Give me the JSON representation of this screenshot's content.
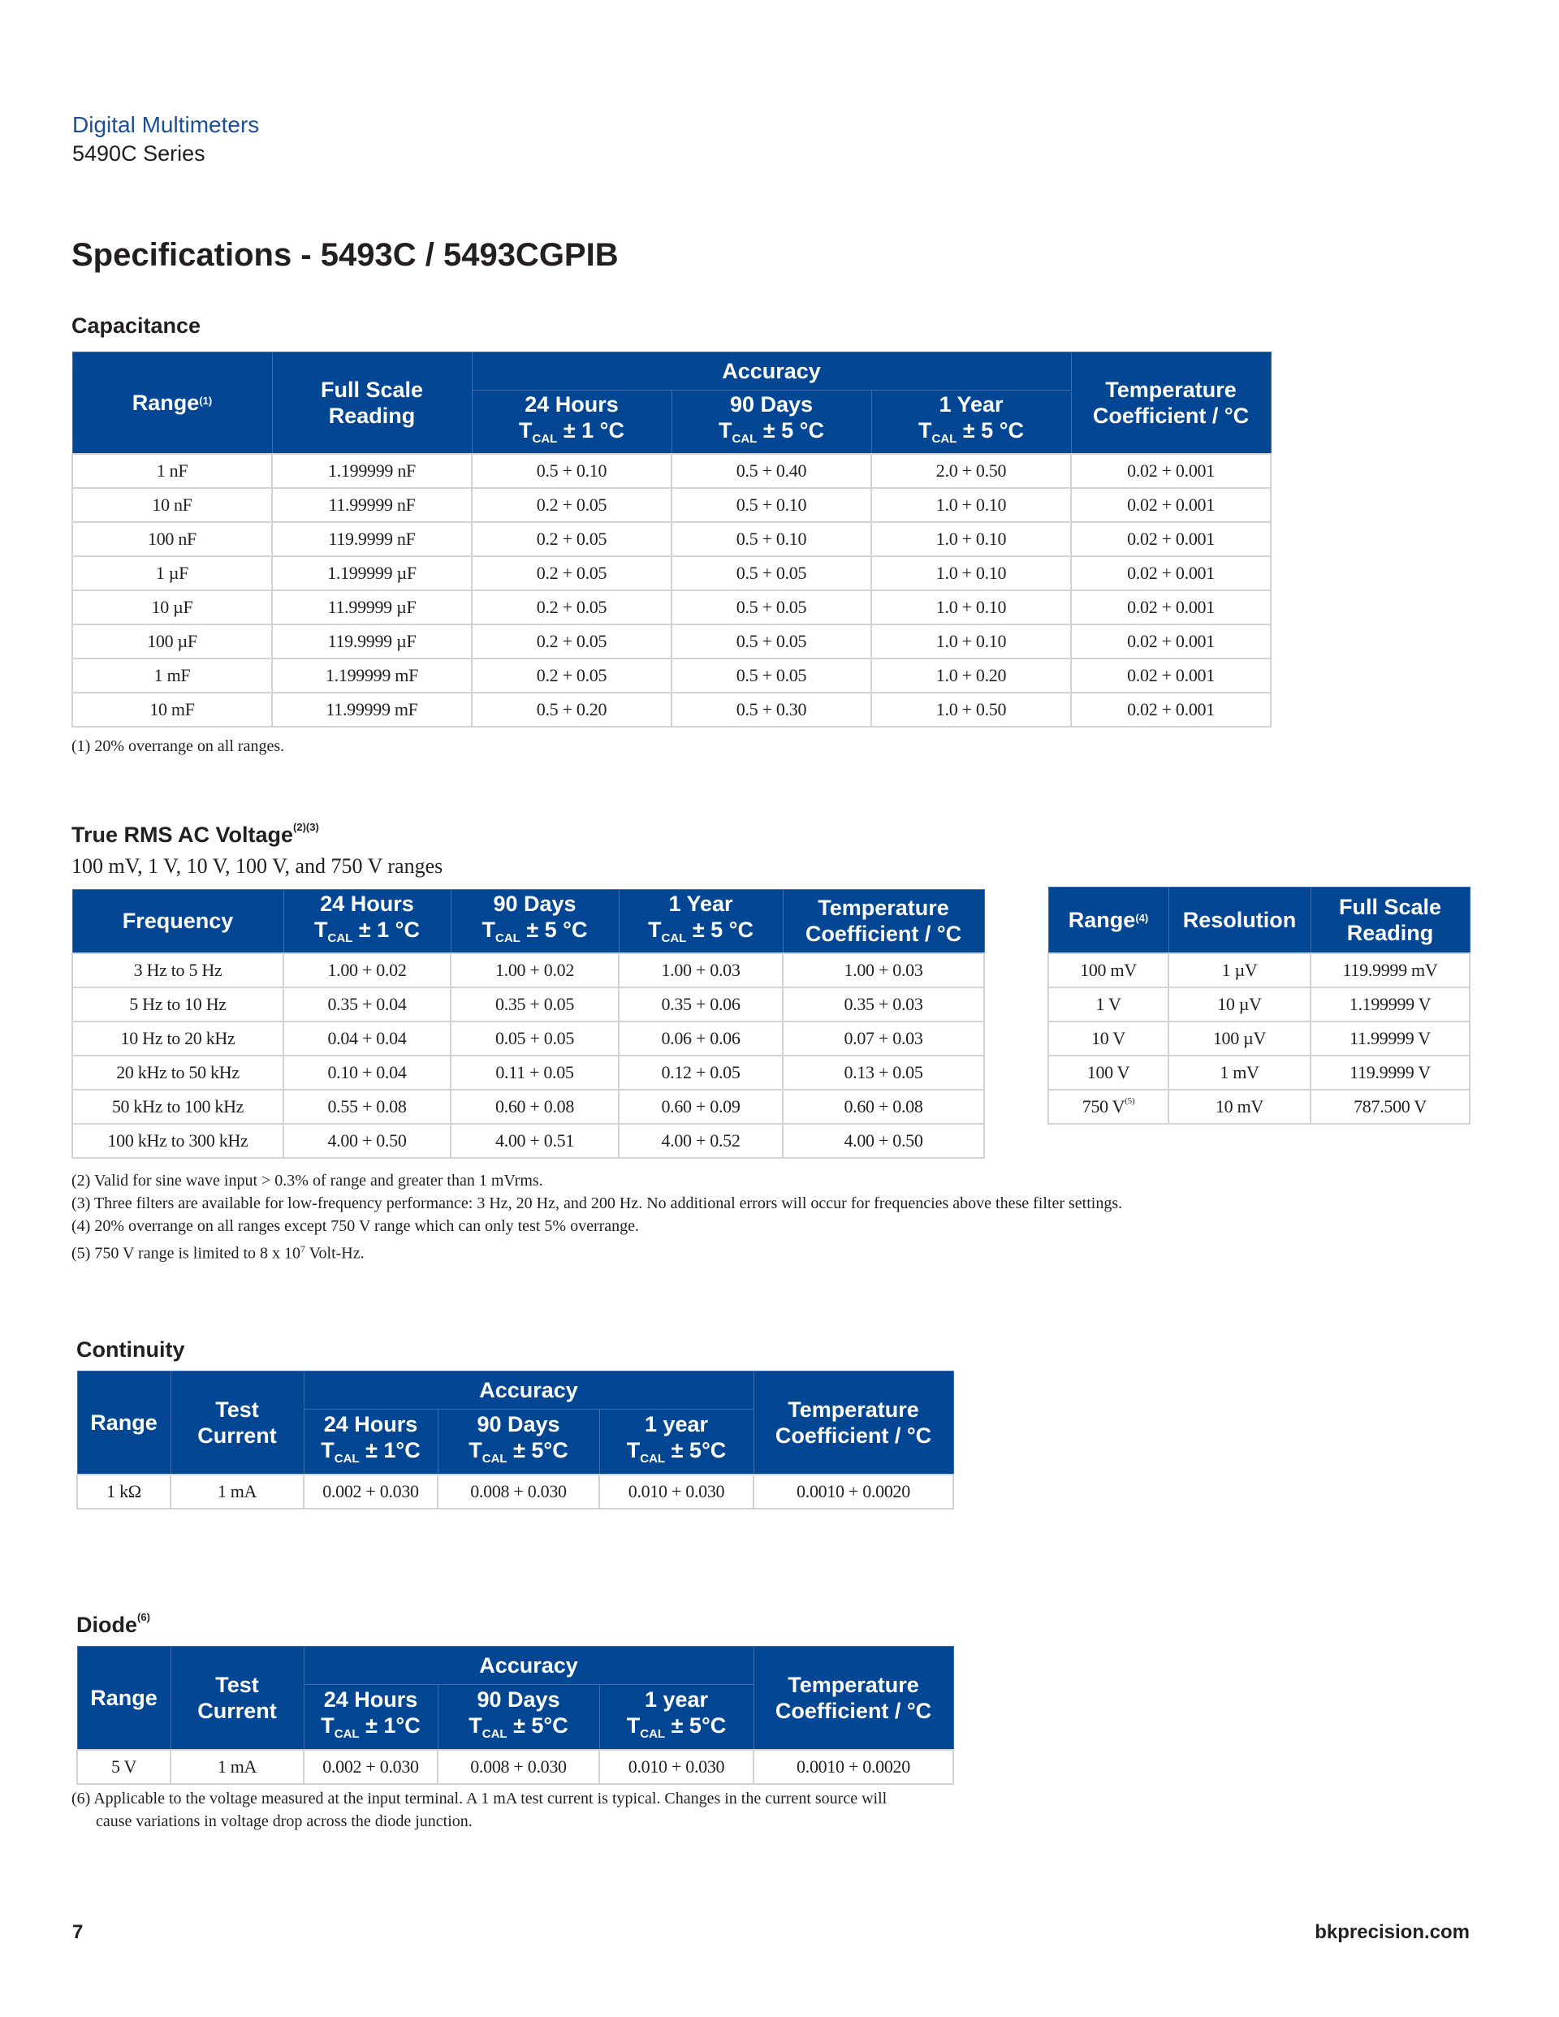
{
  "header": {
    "brand": "Digital Multimeters",
    "series": "5490C Series"
  },
  "title": "Specifications - 5493C / 5493CGPIB",
  "colors": {
    "header_blue": "#034694",
    "brand_blue": "#1a4f9c",
    "border_gray": "#d2d3d5"
  },
  "tcal": {
    "symbol": "T",
    "sub": "CAL"
  },
  "capacitance": {
    "heading": "Capacitance",
    "headers": {
      "range": "Range",
      "range_sup": "(1)",
      "full_scale": "Full Scale Reading",
      "accuracy": "Accuracy",
      "h24": "24 Hours",
      "h24_t": "± 1 °C",
      "d90": "90 Days",
      "d90_t": "± 5 °C",
      "y1": "1 Year",
      "y1_t": "± 5 °C",
      "temp": "Temperature Coefficient / °C"
    },
    "rows": [
      [
        "1 nF",
        "1.199999 nF",
        "0.5 + 0.10",
        "0.5 + 0.40",
        "2.0 + 0.50",
        "0.02 + 0.001"
      ],
      [
        "10 nF",
        "11.99999 nF",
        "0.2 + 0.05",
        "0.5 + 0.10",
        "1.0 + 0.10",
        "0.02 + 0.001"
      ],
      [
        "100 nF",
        "119.9999 nF",
        "0.2 + 0.05",
        "0.5 + 0.10",
        "1.0 + 0.10",
        "0.02 + 0.001"
      ],
      [
        "1 µF",
        "1.199999 µF",
        "0.2 + 0.05",
        "0.5 + 0.05",
        "1.0 + 0.10",
        "0.02 + 0.001"
      ],
      [
        "10 µF",
        "11.99999 µF",
        "0.2 + 0.05",
        "0.5 + 0.05",
        "1.0 + 0.10",
        "0.02 + 0.001"
      ],
      [
        "100 µF",
        "119.9999 µF",
        "0.2 + 0.05",
        "0.5 + 0.05",
        "1.0 + 0.10",
        "0.02 + 0.001"
      ],
      [
        "1 mF",
        "1.199999 mF",
        "0.2 + 0.05",
        "0.5 + 0.05",
        "1.0 + 0.20",
        "0.02 + 0.001"
      ],
      [
        "10 mF",
        "11.99999 mF",
        "0.5 + 0.20",
        "0.5 + 0.30",
        "1.0 + 0.50",
        "0.02 + 0.001"
      ]
    ],
    "footnote": "(1) 20% overrange on all ranges."
  },
  "ac_voltage": {
    "heading": "True RMS AC Voltage",
    "heading_sup": "(2)(3)",
    "subtitle": "100 mV, 1 V, 10 V, 100 V, and 750 V ranges",
    "headers": {
      "frequency": "Frequency",
      "h24": "24 Hours",
      "h24_t": "± 1 °C",
      "d90": "90 Days",
      "d90_t": "± 5 °C",
      "y1": "1 Year",
      "y1_t": "± 5 °C",
      "temp": "Temperature Coefficient / °C"
    },
    "rows": [
      [
        "3 Hz to 5 Hz",
        "1.00 + 0.02",
        "1.00 + 0.02",
        "1.00 + 0.03",
        "1.00 + 0.03"
      ],
      [
        "5 Hz to 10 Hz",
        "0.35 + 0.04",
        "0.35 + 0.05",
        "0.35 + 0.06",
        "0.35 + 0.03"
      ],
      [
        "10 Hz to 20 kHz",
        "0.04 + 0.04",
        "0.05 + 0.05",
        "0.06 + 0.06",
        "0.07 + 0.03"
      ],
      [
        "20 kHz to 50 kHz",
        "0.10 + 0.04",
        "0.11 + 0.05",
        "0.12 + 0.05",
        "0.13 + 0.05"
      ],
      [
        "50 kHz to 100 kHz",
        "0.55 + 0.08",
        "0.60 + 0.08",
        "0.60 + 0.09",
        "0.60 + 0.08"
      ],
      [
        "100 kHz to 300 kHz",
        "4.00 + 0.50",
        "4.00 + 0.51",
        "4.00 + 0.52",
        "4.00 + 0.50"
      ]
    ],
    "range_table": {
      "headers": {
        "range": "Range",
        "range_sup": "(4)",
        "resolution": "Resolution",
        "full_scale": "Full Scale Reading"
      },
      "rows": [
        [
          "100 mV",
          "1 µV",
          "119.9999 mV"
        ],
        [
          "1 V",
          "10 µV",
          "1.199999 V"
        ],
        [
          "10 V",
          "100 µV",
          "11.99999 V"
        ],
        [
          "100 V",
          "1 mV",
          "119.9999 V"
        ],
        [
          "750 V",
          "10 mV",
          "787.500 V"
        ]
      ],
      "last_row_sup": "(5)"
    },
    "footnotes": [
      "(2) Valid for sine wave input > 0.3% of range and greater than 1 mVrms.",
      "(3) Three filters are available for low-frequency performance: 3 Hz, 20 Hz, and 200 Hz. No additional errors will occur for frequencies above these filter settings.",
      "(4) 20% overrange on all ranges except 750 V range which can only test 5% overrange.",
      "(5) 750 V range is limited to 8 x 10",
      "7",
      " Volt-Hz."
    ]
  },
  "continuity": {
    "heading": "Continuity",
    "headers": {
      "range": "Range",
      "test_current": "Test Current",
      "accuracy": "Accuracy",
      "h24": "24 Hours",
      "h24_t": "± 1°C",
      "d90": "90 Days",
      "d90_t": "± 5°C",
      "y1": "1 year",
      "y1_t": "± 5°C",
      "temp": "Temperature Coefficient / °C"
    },
    "rows": [
      [
        "1 kΩ",
        "1 mA",
        "0.002 + 0.030",
        "0.008 + 0.030",
        "0.010 + 0.030",
        "0.0010 + 0.0020"
      ]
    ]
  },
  "diode": {
    "heading": "Diode",
    "heading_sup": "(6)",
    "headers": {
      "range": "Range",
      "test_current": "Test Current",
      "accuracy": "Accuracy",
      "h24": "24 Hours",
      "h24_t": "± 1°C",
      "d90": "90 Days",
      "d90_t": "± 5°C",
      "y1": "1 year",
      "y1_t": "± 5°C",
      "temp": "Temperature Coefficient / °C"
    },
    "rows": [
      [
        "5 V",
        "1 mA",
        "0.002 + 0.030",
        "0.008 + 0.030",
        "0.010 + 0.030",
        "0.0010 + 0.0020"
      ]
    ],
    "footnote_line1": "(6) Applicable to the voltage measured at the input terminal. A 1 mA test current is typical. Changes in the current source will",
    "footnote_line2": "cause variations in voltage drop across the diode junction."
  },
  "footer": {
    "page": "7",
    "site": "bkprecision.com"
  }
}
